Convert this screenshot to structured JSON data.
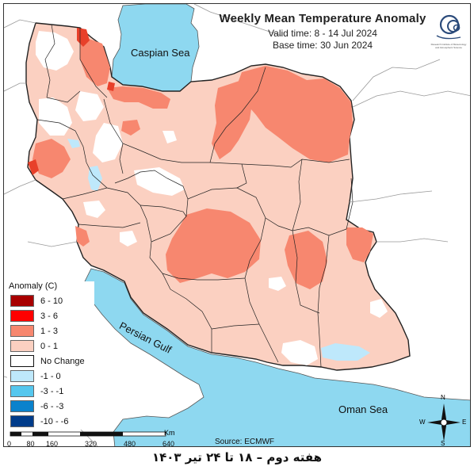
{
  "title": {
    "main": "Weekly Mean Temperature Anomaly",
    "valid_time": "Valid time: 8 - 14 Jul 2024",
    "base_time": "Base time: 30 Jun 2024"
  },
  "sea_labels": {
    "caspian": "Caspian Sea",
    "persian_gulf": "Persian Gulf",
    "oman": "Oman Sea"
  },
  "legend": {
    "title": "Anomaly (C)",
    "items": [
      {
        "label": "6 - 10",
        "color": "#a80000"
      },
      {
        "label": "3 - 6",
        "color": "#ff0000"
      },
      {
        "label": "1 - 3",
        "color": "#f7876f"
      },
      {
        "label": "0 - 1",
        "color": "#fbd0c1"
      },
      {
        "label": "No Change",
        "color": "#ffffff"
      },
      {
        "label": "-1 - 0",
        "color": "#bee8fb"
      },
      {
        "label": "-3 - -1",
        "color": "#55c7ee"
      },
      {
        "label": "-6 - -3",
        "color": "#0a82cc"
      },
      {
        "label": "-10 - -6",
        "color": "#003c8a"
      }
    ]
  },
  "scale": {
    "unit": "Km",
    "ticks": [
      "0",
      "80",
      "160",
      "320",
      "480",
      "640"
    ]
  },
  "source": "Source: ECMWF",
  "compass": {
    "n": "N",
    "s": "S",
    "e": "E",
    "w": "W"
  },
  "caption": "هفته دوم – ۱۸ تا ۲۴ تیر ۱۴۰۳",
  "colors": {
    "sea": "#8ed8f0",
    "land_outside": "#ffffff",
    "positive_low": "#fbd0c1",
    "positive_mid": "#f7876f",
    "positive_high": "#e8402a",
    "negative_low": "#bee8fb",
    "border": "#222222"
  },
  "logo_text": "Research Institute of Meteorology and Atmospheric Science"
}
